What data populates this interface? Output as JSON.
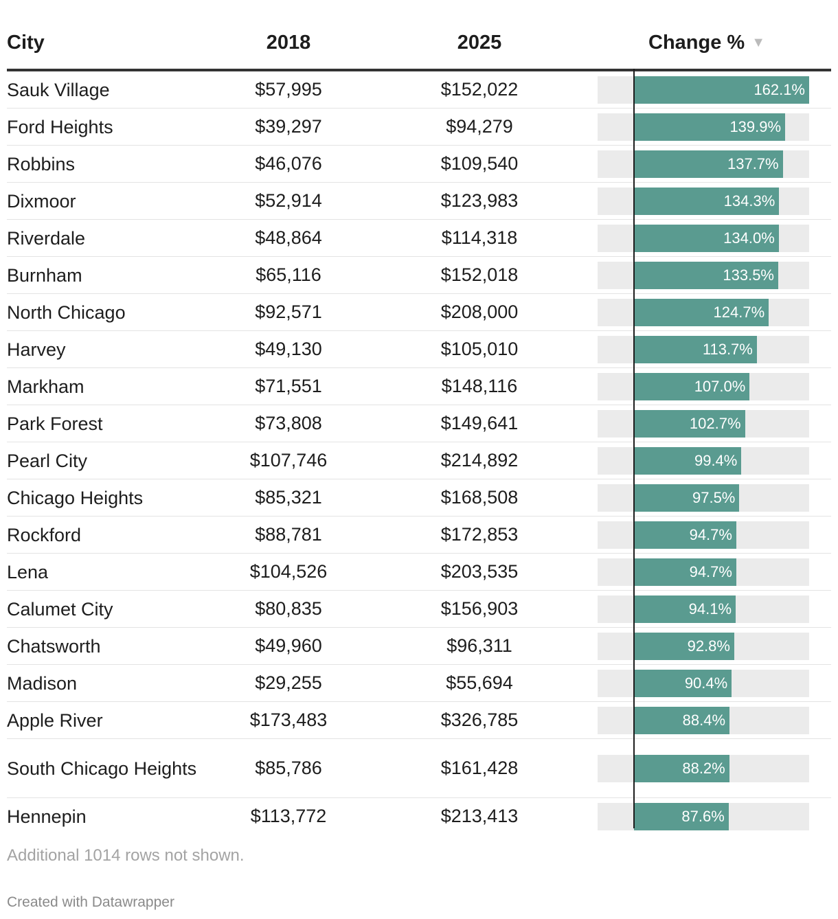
{
  "headers": {
    "city": "City",
    "y2018": "2018",
    "y2025": "2025",
    "change": "Change %",
    "sort_icon": "triangle-down-icon"
  },
  "footer": {
    "note": "Additional 1014 rows not shown.",
    "credit": "Created with Datawrapper"
  },
  "colors": {
    "bar": "#5a9b90",
    "track": "#ebebeb",
    "header_rule": "#333333"
  },
  "chart_data": {
    "type": "table",
    "columns": [
      "City",
      "2018",
      "2025",
      "Change %"
    ],
    "bar_scale_max": 162.1,
    "rows": [
      {
        "city": "Sauk Village",
        "y2018": "$57,995",
        "y2025": "$152,022",
        "change": 162.1,
        "change_label": "162.1%"
      },
      {
        "city": "Ford Heights",
        "y2018": "$39,297",
        "y2025": "$94,279",
        "change": 139.9,
        "change_label": "139.9%"
      },
      {
        "city": "Robbins",
        "y2018": "$46,076",
        "y2025": "$109,540",
        "change": 137.7,
        "change_label": "137.7%"
      },
      {
        "city": "Dixmoor",
        "y2018": "$52,914",
        "y2025": "$123,983",
        "change": 134.3,
        "change_label": "134.3%"
      },
      {
        "city": "Riverdale",
        "y2018": "$48,864",
        "y2025": "$114,318",
        "change": 134.0,
        "change_label": "134.0%"
      },
      {
        "city": "Burnham",
        "y2018": "$65,116",
        "y2025": "$152,018",
        "change": 133.5,
        "change_label": "133.5%"
      },
      {
        "city": "North Chicago",
        "y2018": "$92,571",
        "y2025": "$208,000",
        "change": 124.7,
        "change_label": "124.7%"
      },
      {
        "city": "Harvey",
        "y2018": "$49,130",
        "y2025": "$105,010",
        "change": 113.7,
        "change_label": "113.7%"
      },
      {
        "city": "Markham",
        "y2018": "$71,551",
        "y2025": "$148,116",
        "change": 107.0,
        "change_label": "107.0%"
      },
      {
        "city": "Park Forest",
        "y2018": "$73,808",
        "y2025": "$149,641",
        "change": 102.7,
        "change_label": "102.7%"
      },
      {
        "city": "Pearl City",
        "y2018": "$107,746",
        "y2025": "$214,892",
        "change": 99.4,
        "change_label": "99.4%"
      },
      {
        "city": "Chicago Heights",
        "y2018": "$85,321",
        "y2025": "$168,508",
        "change": 97.5,
        "change_label": "97.5%"
      },
      {
        "city": "Rockford",
        "y2018": "$88,781",
        "y2025": "$172,853",
        "change": 94.7,
        "change_label": "94.7%"
      },
      {
        "city": "Lena",
        "y2018": "$104,526",
        "y2025": "$203,535",
        "change": 94.7,
        "change_label": "94.7%"
      },
      {
        "city": "Calumet City",
        "y2018": "$80,835",
        "y2025": "$156,903",
        "change": 94.1,
        "change_label": "94.1%"
      },
      {
        "city": "Chatsworth",
        "y2018": "$49,960",
        "y2025": "$96,311",
        "change": 92.8,
        "change_label": "92.8%"
      },
      {
        "city": "Madison",
        "y2018": "$29,255",
        "y2025": "$55,694",
        "change": 90.4,
        "change_label": "90.4%"
      },
      {
        "city": "Apple River",
        "y2018": "$173,483",
        "y2025": "$326,785",
        "change": 88.4,
        "change_label": "88.4%"
      },
      {
        "city": "South Chicago Heights",
        "y2018": "$85,786",
        "y2025": "$161,428",
        "change": 88.2,
        "change_label": "88.2%",
        "wrap": true
      },
      {
        "city": "Hennepin",
        "y2018": "$113,772",
        "y2025": "$213,413",
        "change": 87.6,
        "change_label": "87.6%"
      }
    ]
  }
}
